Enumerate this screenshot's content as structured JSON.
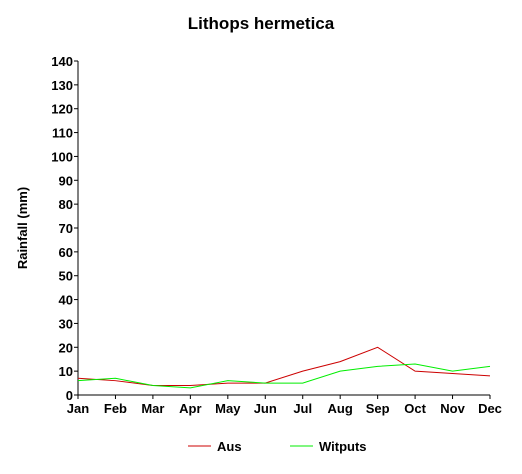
{
  "chart_data": {
    "type": "line",
    "title": "Lithops hermetica",
    "xlabel": "",
    "ylabel": "Rainfall (mm)",
    "categories": [
      "Jan",
      "Feb",
      "Mar",
      "Apr",
      "May",
      "Jun",
      "Jul",
      "Aug",
      "Sep",
      "Oct",
      "Nov",
      "Dec"
    ],
    "ylim": [
      0,
      140
    ],
    "yticks": [
      0,
      10,
      20,
      30,
      40,
      50,
      60,
      70,
      80,
      90,
      100,
      110,
      120,
      130,
      140
    ],
    "grid": false,
    "legend_position": "bottom",
    "series": [
      {
        "name": "Aus",
        "color": "#cc0000",
        "values": [
          7,
          6,
          4,
          4,
          5,
          5,
          10,
          14,
          20,
          10,
          9,
          8
        ]
      },
      {
        "name": "Witputs",
        "color": "#00ee00",
        "values": [
          6,
          7,
          4,
          3,
          6,
          5,
          5,
          10,
          12,
          13,
          10,
          12
        ]
      }
    ]
  }
}
